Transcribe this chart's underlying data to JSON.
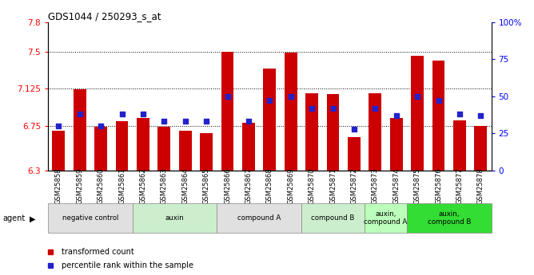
{
  "title": "GDS1044 / 250293_s_at",
  "samples": [
    "GSM25858",
    "GSM25859",
    "GSM25860",
    "GSM25861",
    "GSM25862",
    "GSM25863",
    "GSM25864",
    "GSM25865",
    "GSM25866",
    "GSM25867",
    "GSM25868",
    "GSM25869",
    "GSM25870",
    "GSM25871",
    "GSM25872",
    "GSM25873",
    "GSM25874",
    "GSM25875",
    "GSM25876",
    "GSM25877",
    "GSM25878"
  ],
  "bar_values": [
    6.7,
    7.12,
    6.74,
    6.8,
    6.83,
    6.74,
    6.7,
    6.68,
    7.5,
    6.78,
    7.33,
    7.49,
    7.08,
    7.07,
    6.64,
    7.08,
    6.83,
    7.46,
    7.41,
    6.81,
    6.75
  ],
  "percentile_values": [
    30,
    38,
    30,
    38,
    38,
    33,
    33,
    33,
    50,
    33,
    47,
    50,
    42,
    42,
    28,
    42,
    37,
    50,
    47,
    38,
    37
  ],
  "ylim_left": [
    6.3,
    7.8
  ],
  "ylim_right": [
    0,
    100
  ],
  "yticks_left": [
    6.3,
    6.75,
    7.125,
    7.5,
    7.8
  ],
  "ytick_labels_left": [
    "6.3",
    "6.75",
    "7.125",
    "7.5",
    "7.8"
  ],
  "yticks_right": [
    0,
    25,
    50,
    75,
    100
  ],
  "ytick_labels_right": [
    "0",
    "25",
    "50",
    "75",
    "100%"
  ],
  "hlines": [
    6.75,
    7.125,
    7.5
  ],
  "bar_color": "#cc0000",
  "dot_color": "#2222cc",
  "groups": [
    {
      "label": "negative control",
      "start": 0,
      "end": 4,
      "color": "#e0e0e0"
    },
    {
      "label": "auxin",
      "start": 4,
      "end": 8,
      "color": "#cceecc"
    },
    {
      "label": "compound A",
      "start": 8,
      "end": 12,
      "color": "#e0e0e0"
    },
    {
      "label": "compound B",
      "start": 12,
      "end": 15,
      "color": "#cceecc"
    },
    {
      "label": "auxin,\ncompound A",
      "start": 15,
      "end": 17,
      "color": "#bbffbb"
    },
    {
      "label": "auxin,\ncompound B",
      "start": 17,
      "end": 21,
      "color": "#33dd33"
    }
  ]
}
